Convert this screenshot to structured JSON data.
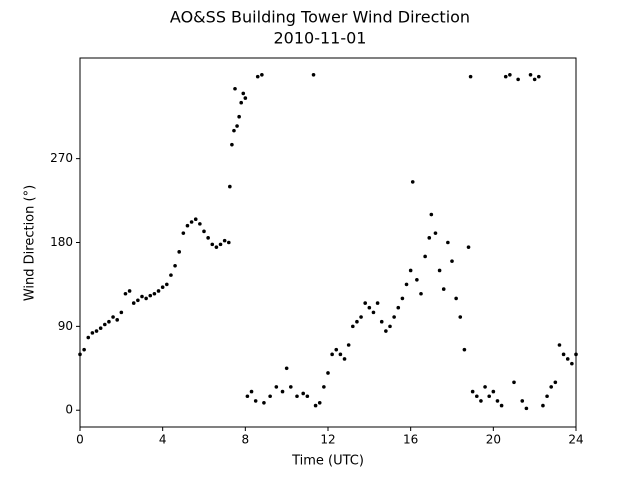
{
  "chart_data": {
    "type": "scatter",
    "title": "AO&SS Building Tower Wind Direction",
    "subtitle": "2010-11-01",
    "x_label": "Time (UTC)",
    "y_label": "Wind Direction (°)",
    "xlim": [
      0,
      24
    ],
    "xticks": [
      0,
      4,
      8,
      12,
      16,
      20,
      24
    ],
    "ylim": [
      -18,
      378
    ],
    "yticks": [
      0,
      90,
      180,
      270
    ],
    "series": [
      {
        "color": "#000000",
        "x": [
          0.0,
          0.2,
          0.4,
          0.6,
          0.8,
          1.0,
          1.2,
          1.4,
          1.6,
          1.8,
          2.0,
          2.2,
          2.4,
          2.6,
          2.8,
          3.0,
          3.2,
          3.4,
          3.6,
          3.8,
          4.0,
          4.2,
          4.4,
          4.6,
          4.8,
          5.0,
          5.2,
          5.4,
          5.6,
          5.8,
          6.0,
          6.2,
          6.4,
          6.6,
          6.8,
          7.0,
          7.2,
          7.25,
          7.35,
          7.45,
          7.5,
          7.6,
          7.7,
          7.8,
          7.9,
          8.0,
          8.1,
          8.3,
          8.5,
          8.6,
          8.8,
          8.9,
          9.2,
          9.5,
          9.8,
          10.0,
          10.2,
          10.5,
          10.8,
          11.0,
          11.3,
          11.4,
          11.6,
          11.8,
          12.0,
          12.2,
          12.4,
          12.6,
          12.8,
          13.0,
          13.2,
          13.4,
          13.6,
          13.8,
          14.0,
          14.2,
          14.4,
          14.6,
          14.8,
          15.0,
          15.2,
          15.4,
          15.6,
          15.8,
          16.0,
          16.1,
          16.3,
          16.5,
          16.7,
          16.9,
          17.0,
          17.2,
          17.4,
          17.6,
          17.8,
          18.0,
          18.2,
          18.4,
          18.6,
          18.8,
          18.9,
          19.0,
          19.2,
          19.4,
          19.6,
          19.8,
          20.0,
          20.2,
          20.4,
          20.6,
          20.8,
          21.0,
          21.2,
          21.4,
          21.6,
          21.8,
          22.0,
          22.2,
          22.4,
          22.6,
          22.8,
          23.0,
          23.2,
          23.4,
          23.6,
          23.8,
          24.0
        ],
        "values": [
          60,
          65,
          78,
          83,
          85,
          88,
          92,
          95,
          100,
          97,
          105,
          125,
          128,
          115,
          118,
          122,
          120,
          123,
          125,
          128,
          132,
          135,
          145,
          155,
          170,
          190,
          198,
          202,
          205,
          200,
          192,
          185,
          178,
          175,
          178,
          182,
          180,
          240,
          285,
          300,
          345,
          305,
          315,
          330,
          340,
          335,
          15,
          20,
          10,
          358,
          360,
          8,
          15,
          25,
          20,
          45,
          25,
          15,
          18,
          15,
          360,
          5,
          8,
          25,
          40,
          60,
          65,
          60,
          55,
          70,
          90,
          95,
          100,
          115,
          110,
          105,
          115,
          95,
          85,
          90,
          100,
          110,
          120,
          135,
          150,
          245,
          140,
          125,
          165,
          185,
          210,
          190,
          150,
          130,
          180,
          160,
          120,
          100,
          65,
          175,
          358,
          20,
          15,
          10,
          25,
          15,
          20,
          10,
          5,
          358,
          360,
          30,
          355,
          10,
          2,
          360,
          355,
          358,
          5,
          15,
          25,
          30,
          70,
          60,
          55,
          50,
          60
        ]
      }
    ]
  }
}
